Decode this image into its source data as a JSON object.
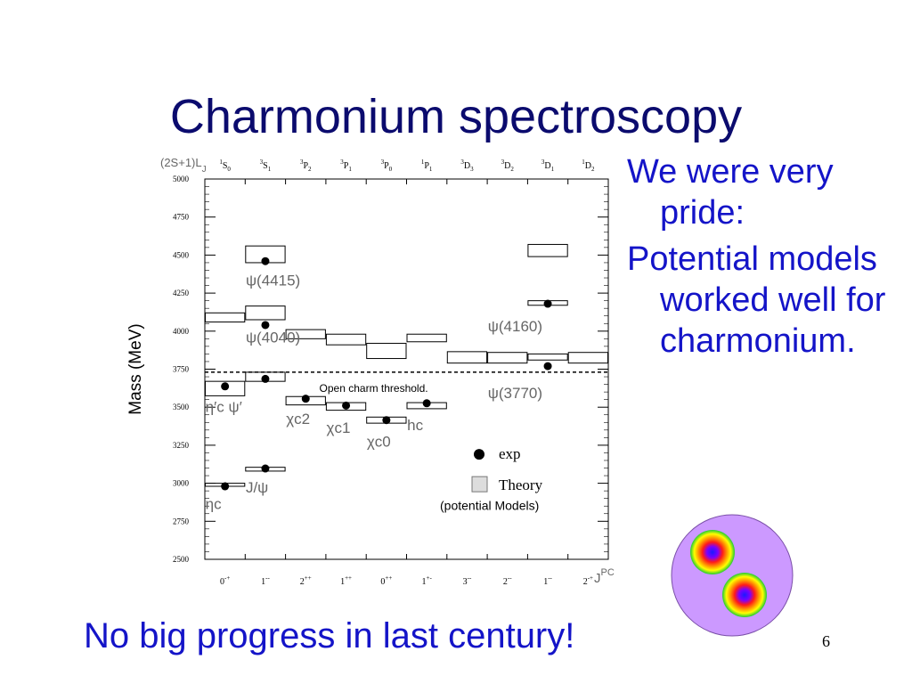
{
  "slide": {
    "title": "Charmonium spectroscopy",
    "bullets": [
      "We were very pride:",
      "Potential models worked well for charmonium."
    ],
    "footer": "No big progress in last century!",
    "page_number": "6"
  },
  "chart_data": {
    "type": "scatter",
    "ylabel": "Mass (MeV)",
    "ylim": [
      2500,
      5000
    ],
    "yticks": [
      2500,
      2750,
      3000,
      3250,
      3500,
      3750,
      4000,
      4250,
      4500,
      4750,
      5000
    ],
    "top_axis_label": "(2S+1)L",
    "top_axis_sub": "J",
    "bottom_axis_label": "J",
    "bottom_axis_sup": "PC",
    "columns": [
      {
        "state_pre": "1",
        "state_L": "S",
        "state_sub": "0",
        "jpc_main": "0",
        "jpc_sup": "-+"
      },
      {
        "state_pre": "3",
        "state_L": "S",
        "state_sub": "1",
        "jpc_main": "1",
        "jpc_sup": "--"
      },
      {
        "state_pre": "3",
        "state_L": "P",
        "state_sub": "2",
        "jpc_main": "2",
        "jpc_sup": "++"
      },
      {
        "state_pre": "3",
        "state_L": "P",
        "state_sub": "1",
        "jpc_main": "1",
        "jpc_sup": "++"
      },
      {
        "state_pre": "3",
        "state_L": "P",
        "state_sub": "0",
        "jpc_main": "0",
        "jpc_sup": "++"
      },
      {
        "state_pre": "1",
        "state_L": "P",
        "state_sub": "1",
        "jpc_main": "1",
        "jpc_sup": "+-"
      },
      {
        "state_pre": "3",
        "state_L": "D",
        "state_sub": "3",
        "jpc_main": "3",
        "jpc_sup": "--"
      },
      {
        "state_pre": "3",
        "state_L": "D",
        "state_sub": "2",
        "jpc_main": "2",
        "jpc_sup": "--"
      },
      {
        "state_pre": "3",
        "state_L": "D",
        "state_sub": "1",
        "jpc_main": "1",
        "jpc_sup": "--"
      },
      {
        "state_pre": "1",
        "state_L": "D",
        "state_sub": "2",
        "jpc_main": "2",
        "jpc_sup": "-+"
      }
    ],
    "theory_boxes": [
      {
        "col": 0,
        "low": 2980,
        "high": 3000
      },
      {
        "col": 0,
        "low": 3575,
        "high": 3670
      },
      {
        "col": 0,
        "low": 4060,
        "high": 4120
      },
      {
        "col": 1,
        "low": 3080,
        "high": 3105
      },
      {
        "col": 1,
        "low": 3670,
        "high": 3730
      },
      {
        "col": 1,
        "low": 4075,
        "high": 4165
      },
      {
        "col": 1,
        "low": 4450,
        "high": 4560
      },
      {
        "col": 2,
        "low": 3515,
        "high": 3570
      },
      {
        "col": 2,
        "low": 3950,
        "high": 4010
      },
      {
        "col": 3,
        "low": 3480,
        "high": 3530
      },
      {
        "col": 3,
        "low": 3910,
        "high": 3980
      },
      {
        "col": 4,
        "low": 3395,
        "high": 3435
      },
      {
        "col": 4,
        "low": 3820,
        "high": 3920
      },
      {
        "col": 5,
        "low": 3490,
        "high": 3530
      },
      {
        "col": 5,
        "low": 3930,
        "high": 3980
      },
      {
        "col": 6,
        "low": 3790,
        "high": 3865
      },
      {
        "col": 7,
        "low": 3790,
        "high": 3860
      },
      {
        "col": 8,
        "low": 3810,
        "high": 3850
      },
      {
        "col": 8,
        "low": 4170,
        "high": 4200
      },
      {
        "col": 8,
        "low": 4490,
        "high": 4570
      },
      {
        "col": 9,
        "low": 3790,
        "high": 3860
      }
    ],
    "exp_points": [
      {
        "col": 0,
        "mass": 2980
      },
      {
        "col": 0,
        "mass": 3637
      },
      {
        "col": 1,
        "mass": 3097
      },
      {
        "col": 1,
        "mass": 3686
      },
      {
        "col": 1,
        "mass": 4040
      },
      {
        "col": 1,
        "mass": 4460
      },
      {
        "col": 2,
        "mass": 3556
      },
      {
        "col": 3,
        "mass": 3511
      },
      {
        "col": 4,
        "mass": 3415
      },
      {
        "col": 5,
        "mass": 3526
      },
      {
        "col": 8,
        "mass": 3770
      },
      {
        "col": 8,
        "mass": 4180
      }
    ],
    "threshold": {
      "mass": 3730,
      "label": "Open charm threshold."
    },
    "state_labels": [
      {
        "text": "ψ(4415)",
        "col": 1,
        "mass": 4300
      },
      {
        "text": "ψ(4040)",
        "col": 1,
        "mass": 3925
      },
      {
        "text": "ψ(4160)",
        "col": 7,
        "mass": 4000
      },
      {
        "text": "ψ(3770)",
        "col": 7,
        "mass": 3560
      },
      {
        "text": "J/ψ",
        "col": 1,
        "mass": 2940
      },
      {
        "text": "η′c ψ′",
        "col": 0,
        "mass": 3470
      },
      {
        "text": "χc2",
        "col": 2,
        "mass": 3390
      },
      {
        "text": "χc1",
        "col": 3,
        "mass": 3330
      },
      {
        "text": "χc0",
        "col": 4,
        "mass": 3240
      },
      {
        "text": "hc",
        "col": 5,
        "mass": 3350
      },
      {
        "text": "ηc",
        "col": 0,
        "mass": 2830
      }
    ],
    "legend": {
      "exp_label": "exp",
      "theory_label": "Theory",
      "note": "(potential Models)"
    }
  }
}
